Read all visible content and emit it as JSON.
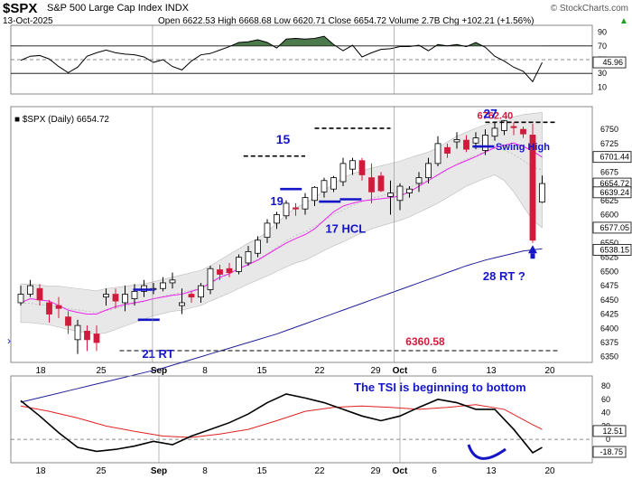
{
  "header": {
    "symbol": "$SPX",
    "name": "S&P 500 Large Cap Index",
    "exchange": "INDX",
    "date": "13-Oct-2025",
    "quote": "Open 6622.53  High 6668.68  Low 6620.71  Close 6654.72  Volume 2.7B  Chg +102.21 (+1.56%)",
    "quote_arrow": "▲",
    "watermark": "© StockCharts.com",
    "legend": "$SPX (Daily) 6654.72"
  },
  "colors": {
    "up": "#ffffff",
    "down": "#d01c3c",
    "candle_edge": "#000000",
    "bollinger_fill": "#e8e8e8",
    "ma_short": "#ee22ee",
    "ma_long": "#202098",
    "annotation_blue": "#1515c8",
    "annotation_red": "#d01c3c",
    "rsi_fill": "#4d7a4d",
    "tsi_signal": "#e02020"
  },
  "chart_data": [
    {
      "type": "line",
      "panel": "rsi",
      "ylim": [
        0,
        100
      ],
      "grid_levels": [
        70,
        30
      ],
      "tick_labels": [
        "90",
        "70",
        "50",
        "30",
        "10"
      ],
      "tick_values": [
        90,
        70,
        50,
        30,
        10
      ],
      "last_value_label": "45.96",
      "x": [
        0,
        1,
        2,
        3,
        4,
        5,
        6,
        7,
        8,
        9,
        10,
        11,
        12,
        13,
        14,
        15,
        16,
        17,
        18,
        19,
        20,
        21,
        22,
        23,
        24,
        25,
        26,
        27,
        28,
        29,
        30,
        31,
        32,
        33,
        34,
        35,
        36,
        37,
        38,
        39,
        40,
        41,
        42,
        43,
        44,
        45,
        46,
        47,
        48,
        49,
        50,
        51,
        52,
        53,
        54,
        55
      ],
      "values": [
        49,
        55,
        56,
        51,
        40,
        31,
        39,
        55,
        60,
        64,
        60,
        58,
        57,
        54,
        46,
        50,
        40,
        35,
        48,
        57,
        59,
        64,
        69,
        75,
        76,
        79,
        75,
        67,
        80,
        81,
        80,
        81,
        84,
        72,
        63,
        71,
        54,
        60,
        65,
        66,
        69,
        69,
        71,
        63,
        72,
        70,
        72,
        69,
        75,
        68,
        55,
        48,
        39,
        33,
        18,
        46
      ]
    },
    {
      "type": "candlestick",
      "panel": "price",
      "ylim": [
        6340,
        6790
      ],
      "tick_values": [
        6350,
        6375,
        6400,
        6425,
        6450,
        6475,
        6500,
        6525,
        6550,
        6575,
        6600,
        6625,
        6650,
        6675,
        6700,
        6725,
        6750
      ],
      "tick_labels": [
        "6350",
        "6375",
        "6400",
        "6425",
        "6450",
        "6475",
        "6500",
        "6525",
        "6550",
        "6575",
        "6600",
        "6625",
        "6650",
        "6675",
        "6700",
        "6725",
        "6750"
      ],
      "price_tags": [
        {
          "label": "6701.44",
          "value": 6701.44
        },
        {
          "label": "6654.72",
          "value": 6654.72
        },
        {
          "label": "6639.24",
          "value": 6639.24
        },
        {
          "label": "6577.05",
          "value": 6577.05
        },
        {
          "label": "6538.15",
          "value": 6538.15
        }
      ],
      "x": [
        0,
        1,
        2,
        3,
        4,
        5,
        6,
        7,
        8,
        9,
        10,
        11,
        12,
        13,
        14,
        15,
        16,
        17,
        18,
        19,
        20,
        21,
        22,
        23,
        24,
        25,
        26,
        27,
        28,
        29,
        30,
        31,
        32,
        33,
        34,
        35,
        36,
        37,
        38,
        39,
        40,
        41,
        42,
        43,
        44,
        45,
        46,
        47,
        48,
        49,
        50,
        51,
        52,
        53,
        54,
        55
      ],
      "open": [
        6445,
        6460,
        6470,
        6445,
        6440,
        6420,
        6380,
        6395,
        6390,
        6455,
        6460,
        6445,
        6452,
        6465,
        6470,
        6470,
        6480,
        6440,
        6460,
        6455,
        6468,
        6503,
        6505,
        6500,
        6515,
        6532,
        6560,
        6585,
        6598,
        6612,
        6610,
        6625,
        6640,
        6645,
        6658,
        6680,
        6695,
        6665,
        6668,
        6632,
        6625,
        6638,
        6655,
        6665,
        6690,
        6718,
        6728,
        6731,
        6726,
        6713,
        6738,
        6748,
        6755,
        6750,
        6740,
        6622
      ],
      "close": [
        6460,
        6475,
        6450,
        6425,
        6435,
        6405,
        6405,
        6380,
        6375,
        6460,
        6448,
        6460,
        6465,
        6475,
        6470,
        6480,
        6485,
        6445,
        6455,
        6475,
        6505,
        6495,
        6498,
        6525,
        6535,
        6555,
        6585,
        6600,
        6620,
        6610,
        6630,
        6648,
        6660,
        6665,
        6690,
        6695,
        6670,
        6640,
        6642,
        6638,
        6650,
        6645,
        6665,
        6690,
        6725,
        6708,
        6732,
        6715,
        6735,
        6740,
        6752,
        6765,
        6753,
        6742,
        6555,
        6654.72
      ],
      "high": [
        6475,
        6485,
        6478,
        6450,
        6455,
        6430,
        6415,
        6405,
        6405,
        6470,
        6470,
        6475,
        6478,
        6485,
        6480,
        6490,
        6498,
        6470,
        6465,
        6480,
        6510,
        6512,
        6515,
        6530,
        6545,
        6562,
        6592,
        6605,
        6625,
        6620,
        6638,
        6650,
        6665,
        6668,
        6700,
        6700,
        6700,
        6690,
        6675,
        6660,
        6655,
        6650,
        6675,
        6700,
        6738,
        6725,
        6745,
        6740,
        6745,
        6750,
        6762,
        6766,
        6762,
        6755,
        6760,
        6668.68
      ],
      "low": [
        6440,
        6455,
        6440,
        6410,
        6418,
        6390,
        6355,
        6360,
        6360,
        6440,
        6435,
        6430,
        6440,
        6455,
        6460,
        6465,
        6470,
        6425,
        6445,
        6445,
        6460,
        6485,
        6490,
        6495,
        6510,
        6525,
        6550,
        6575,
        6592,
        6598,
        6600,
        6615,
        6630,
        6640,
        6650,
        6670,
        6660,
        6620,
        6640,
        6600,
        6608,
        6630,
        6640,
        6655,
        6685,
        6700,
        6716,
        6710,
        6715,
        6705,
        6730,
        6740,
        6740,
        6735,
        6550,
        6620.71
      ],
      "ma_short": [
        6445,
        6452,
        6450,
        6448,
        6440,
        6432,
        6428,
        6425,
        6425,
        6432,
        6438,
        6442,
        6445,
        6448,
        6452,
        6455,
        6458,
        6460,
        6465,
        6470,
        6480,
        6490,
        6496,
        6505,
        6512,
        6520,
        6530,
        6540,
        6550,
        6558,
        6565,
        6575,
        6590,
        6605,
        6615,
        6620,
        6624,
        6626,
        6628,
        6630,
        6633,
        6640,
        6650,
        6660,
        6670,
        6680,
        6688,
        6695,
        6702,
        6710,
        6718,
        6722,
        6726,
        6720,
        6712,
        6701
      ],
      "ma_long": [
        6270,
        6274,
        6278,
        6282,
        6286,
        6290,
        6294,
        6298,
        6302,
        6306,
        6310,
        6314,
        6318,
        6322,
        6326,
        6330,
        6335,
        6340,
        6345,
        6350,
        6355,
        6360,
        6365,
        6370,
        6375,
        6380,
        6385,
        6390,
        6396,
        6402,
        6408,
        6414,
        6420,
        6426,
        6432,
        6438,
        6444,
        6450,
        6456,
        6462,
        6468,
        6474,
        6480,
        6486,
        6492,
        6498,
        6504,
        6510,
        6515,
        6520,
        6524,
        6528,
        6532,
        6536,
        6538,
        6540
      ],
      "bb_upper": [
        6478,
        6478,
        6476,
        6474,
        6474,
        6472,
        6470,
        6468,
        6466,
        6470,
        6472,
        6474,
        6476,
        6478,
        6482,
        6486,
        6490,
        6494,
        6498,
        6502,
        6510,
        6520,
        6530,
        6540,
        6550,
        6558,
        6570,
        6585,
        6600,
        6612,
        6620,
        6630,
        6642,
        6655,
        6665,
        6672,
        6677,
        6682,
        6686,
        6690,
        6694,
        6700,
        6705,
        6710,
        6718,
        6728,
        6738,
        6745,
        6752,
        6758,
        6763,
        6768,
        6772,
        6776,
        6778,
        6780
      ],
      "bb_lower": [
        6410,
        6410,
        6408,
        6406,
        6402,
        6398,
        6395,
        6392,
        6390,
        6392,
        6398,
        6404,
        6410,
        6416,
        6422,
        6426,
        6430,
        6432,
        6436,
        6440,
        6448,
        6455,
        6462,
        6470,
        6478,
        6485,
        6492,
        6500,
        6508,
        6515,
        6520,
        6528,
        6537,
        6545,
        6552,
        6560,
        6568,
        6575,
        6580,
        6585,
        6590,
        6596,
        6604,
        6612,
        6620,
        6630,
        6640,
        6650,
        6657,
        6664,
        6670,
        6660,
        6640,
        6615,
        6590,
        6577
      ]
    },
    {
      "type": "line",
      "panel": "tsi",
      "ylim": [
        -35,
        95
      ],
      "tick_values": [
        80,
        60,
        40,
        20,
        0,
        -20
      ],
      "tick_labels": [
        "80",
        "60",
        "40",
        "20",
        "0",
        "-20"
      ],
      "value_tags": [
        {
          "label": "12.51",
          "value": 12.51
        },
        {
          "label": "-18.75",
          "value": -18.75
        }
      ],
      "x_tsi": [
        0,
        2,
        4,
        6,
        8,
        10,
        12,
        14,
        16,
        18,
        20,
        22,
        24,
        26,
        28,
        30,
        32,
        34,
        36,
        38,
        40,
        42,
        44,
        46,
        48,
        50,
        52,
        54,
        55
      ],
      "tsi": [
        58,
        35,
        10,
        -12,
        -18,
        -15,
        -10,
        -3,
        -8,
        5,
        15,
        25,
        38,
        55,
        68,
        62,
        55,
        45,
        35,
        28,
        35,
        48,
        60,
        55,
        45,
        45,
        15,
        -20,
        -12
      ],
      "x_signal": [
        0,
        3,
        6,
        9,
        12,
        15,
        18,
        21,
        24,
        27,
        30,
        33,
        36,
        39,
        42,
        45,
        48,
        51,
        54,
        55
      ],
      "signal": [
        50,
        42,
        32,
        20,
        12,
        5,
        3,
        8,
        15,
        28,
        42,
        48,
        50,
        48,
        45,
        48,
        52,
        45,
        22,
        15
      ]
    }
  ],
  "x_axis": {
    "labels": [
      {
        "label": "18",
        "x": 1
      },
      {
        "label": "25",
        "x": 6
      },
      {
        "label": "Sep",
        "x": 10.8
      },
      {
        "label": "8",
        "x": 15
      },
      {
        "label": "15",
        "x": 20
      },
      {
        "label": "22",
        "x": 25
      },
      {
        "label": "29",
        "x": 30
      },
      {
        "label": "Oct",
        "x": 33
      },
      {
        "label": "6",
        "x": 35
      },
      {
        "label": "13",
        "x": 40
      },
      {
        "label": "20",
        "x": 45
      }
    ],
    "separator_x": 10.3
  },
  "annotations": {
    "level_high": {
      "label": "6762.40",
      "value": 6762.4,
      "x_from": 49,
      "x_to": 57
    },
    "level_low": {
      "label": "6360.58",
      "value": 6360.58,
      "x_from": 11,
      "x_to": 57
    },
    "level_15": {
      "value": 6703,
      "x_from": 23.5,
      "x_to": 30
    },
    "level_27": {
      "value": 6752,
      "x_from": 31,
      "x_to": 39
    },
    "swing_high": {
      "label": "Swing High",
      "value": 6720
    },
    "label_15": {
      "label": "15",
      "x": 23.5,
      "value": 6725
    },
    "label_19": {
      "label": "19",
      "x": 20.8,
      "value": 6617
    },
    "label_17hcl": {
      "label": "17 HCL",
      "x": 24.9,
      "value": 6568
    },
    "label_21rt": {
      "label": "21 RT",
      "x": 10.9,
      "value": 6348
    },
    "label_27": {
      "label": "27",
      "x": 36.8,
      "value": 6770
    },
    "label_28rt": {
      "label": "28 RT ?",
      "x": 37.8,
      "value": 6485
    },
    "tsi_note": "The TSI is beginning to bottom"
  }
}
